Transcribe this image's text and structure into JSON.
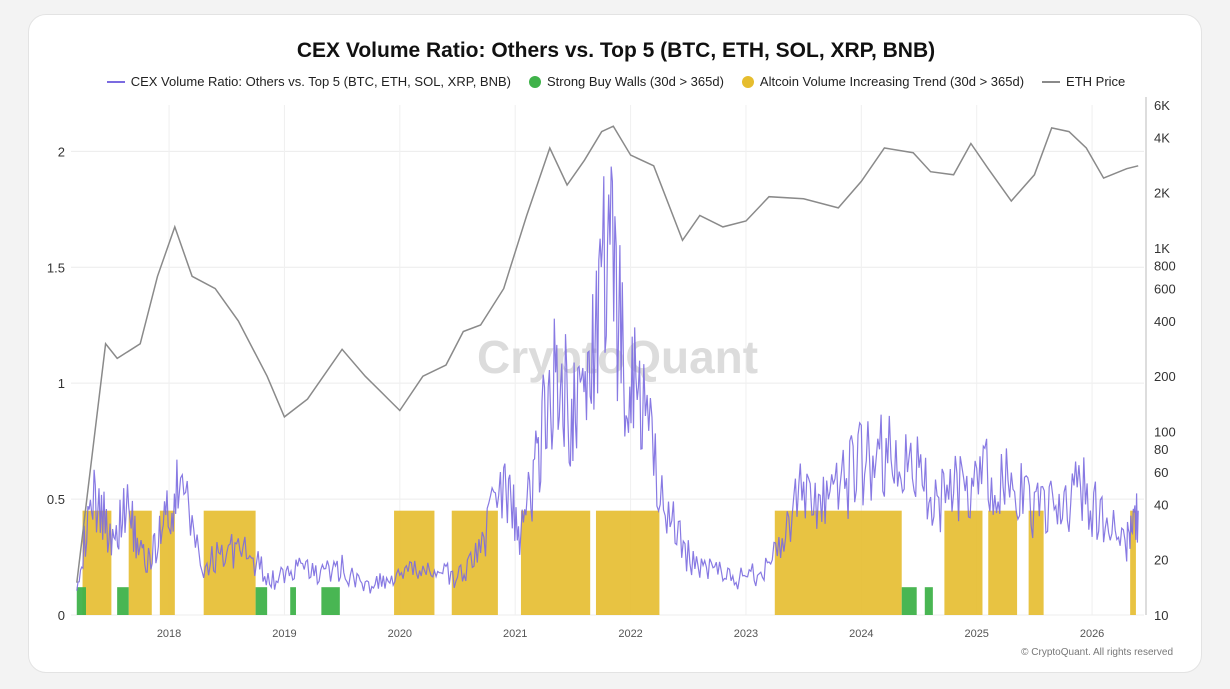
{
  "chart_data": {
    "type": "bar",
    "title": "CEX Volume Ratio: Others vs. Top 5 (BTC, ETH, SOL, XRP, BNB)",
    "legend": [
      {
        "name": "CEX Volume Ratio: Others vs. Top 5 (BTC, ETH, SOL, XRP, BNB)",
        "color": "#7b6be0",
        "kind": "line"
      },
      {
        "name": "Strong Buy Walls (30d > 365d)",
        "color": "#3fb24a",
        "kind": "dot"
      },
      {
        "name": "Altcoin Volume Increasing Trend (30d > 365d)",
        "color": "#e6bd2e",
        "kind": "dot"
      },
      {
        "name": "ETH Price",
        "color": "#8a8a8a",
        "kind": "line"
      }
    ],
    "x_ticks": [
      "2018",
      "2019",
      "2020",
      "2021",
      "2022",
      "2023",
      "2024",
      "2025",
      "2026"
    ],
    "xlim": [
      2017.15,
      2026.45
    ],
    "y_left_ticks": [
      "0",
      "0.5",
      "1",
      "1.5",
      "2"
    ],
    "y_left_lim": [
      0,
      2.2
    ],
    "y_right_ticks": [
      "10",
      "20",
      "40",
      "60",
      "80",
      "100",
      "200",
      "400",
      "600",
      "800",
      "1K",
      "2K",
      "4K",
      "6K"
    ],
    "y_right_values": [
      10,
      20,
      40,
      60,
      80,
      100,
      200,
      400,
      600,
      800,
      1000,
      2000,
      4000,
      6000
    ],
    "y_right_scale": "log",
    "y_right_lim": [
      10,
      6000
    ],
    "ratio_series": {
      "name": "CEX Volume Ratio: Others vs. Top 5 (BTC, ETH, SOL, XRP, BNB)",
      "x": [
        2017.2,
        2017.35,
        2017.5,
        2017.65,
        2017.8,
        2017.95,
        2018.1,
        2018.3,
        2018.5,
        2018.7,
        2018.9,
        2019.1,
        2019.3,
        2019.5,
        2019.7,
        2019.9,
        2020.1,
        2020.3,
        2020.5,
        2020.7,
        2020.9,
        2021.05,
        2021.2,
        2021.35,
        2021.5,
        2021.65,
        2021.8,
        2021.95,
        2022.1,
        2022.3,
        2022.5,
        2022.7,
        2022.9,
        2023.1,
        2023.3,
        2023.5,
        2023.7,
        2023.9,
        2024.1,
        2024.3,
        2024.5,
        2024.7,
        2024.9,
        2025.1,
        2025.3,
        2025.5,
        2025.7,
        2025.9,
        2026.1,
        2026.3,
        2026.4
      ],
      "values": [
        0.15,
        0.5,
        0.35,
        0.45,
        0.2,
        0.4,
        0.55,
        0.2,
        0.3,
        0.25,
        0.15,
        0.2,
        0.18,
        0.2,
        0.12,
        0.15,
        0.18,
        0.2,
        0.15,
        0.3,
        0.55,
        0.35,
        0.7,
        1.1,
        0.85,
        1.05,
        1.6,
        1.1,
        0.9,
        0.45,
        0.25,
        0.2,
        0.15,
        0.18,
        0.3,
        0.55,
        0.45,
        0.6,
        0.7,
        0.65,
        0.6,
        0.5,
        0.55,
        0.6,
        0.55,
        0.45,
        0.45,
        0.55,
        0.4,
        0.3,
        0.45
      ]
    },
    "eth_price": {
      "name": "ETH Price",
      "x": [
        2017.2,
        2017.3,
        2017.45,
        2017.55,
        2017.75,
        2017.9,
        2018.05,
        2018.2,
        2018.4,
        2018.6,
        2018.85,
        2019.0,
        2019.2,
        2019.5,
        2019.7,
        2019.9,
        2020.0,
        2020.2,
        2020.4,
        2020.55,
        2020.7,
        2020.9,
        2021.1,
        2021.3,
        2021.45,
        2021.6,
        2021.75,
        2021.85,
        2022.0,
        2022.2,
        2022.45,
        2022.6,
        2022.8,
        2023.0,
        2023.2,
        2023.5,
        2023.8,
        2024.0,
        2024.2,
        2024.45,
        2024.6,
        2024.8,
        2024.95,
        2025.1,
        2025.3,
        2025.5,
        2025.65,
        2025.8,
        2025.95,
        2026.1,
        2026.3,
        2026.4
      ],
      "values": [
        15,
        50,
        300,
        250,
        300,
        700,
        1300,
        700,
        600,
        400,
        200,
        120,
        150,
        280,
        200,
        150,
        130,
        200,
        230,
        350,
        380,
        600,
        1500,
        3500,
        2200,
        3000,
        4300,
        4600,
        3200,
        2800,
        1100,
        1500,
        1300,
        1400,
        1900,
        1850,
        1650,
        2300,
        3500,
        3300,
        2600,
        2500,
        3700,
        2700,
        1800,
        2500,
        4500,
        4300,
        3500,
        2400,
        2700,
        2800
      ]
    },
    "strong_buy_walls": [
      [
        2017.2,
        2017.28
      ],
      [
        2017.55,
        2017.65
      ],
      [
        2018.75,
        2018.85
      ],
      [
        2019.05,
        2019.1
      ],
      [
        2019.32,
        2019.48
      ],
      [
        2024.35,
        2024.48
      ],
      [
        2024.55,
        2024.62
      ]
    ],
    "altcoin_volume_trend": [
      [
        2017.25,
        2017.5
      ],
      [
        2017.65,
        2017.85
      ],
      [
        2017.92,
        2018.05
      ],
      [
        2018.3,
        2018.75
      ],
      [
        2019.95,
        2020.3
      ],
      [
        2020.45,
        2020.85
      ],
      [
        2021.05,
        2021.65
      ],
      [
        2021.7,
        2022.25
      ],
      [
        2023.25,
        2024.35
      ],
      [
        2024.72,
        2025.05
      ],
      [
        2025.1,
        2025.35
      ],
      [
        2025.45,
        2025.58
      ],
      [
        2026.33,
        2026.38
      ]
    ]
  },
  "watermark": "CryptoQuant",
  "credit": "© CryptoQuant. All rights reserved"
}
